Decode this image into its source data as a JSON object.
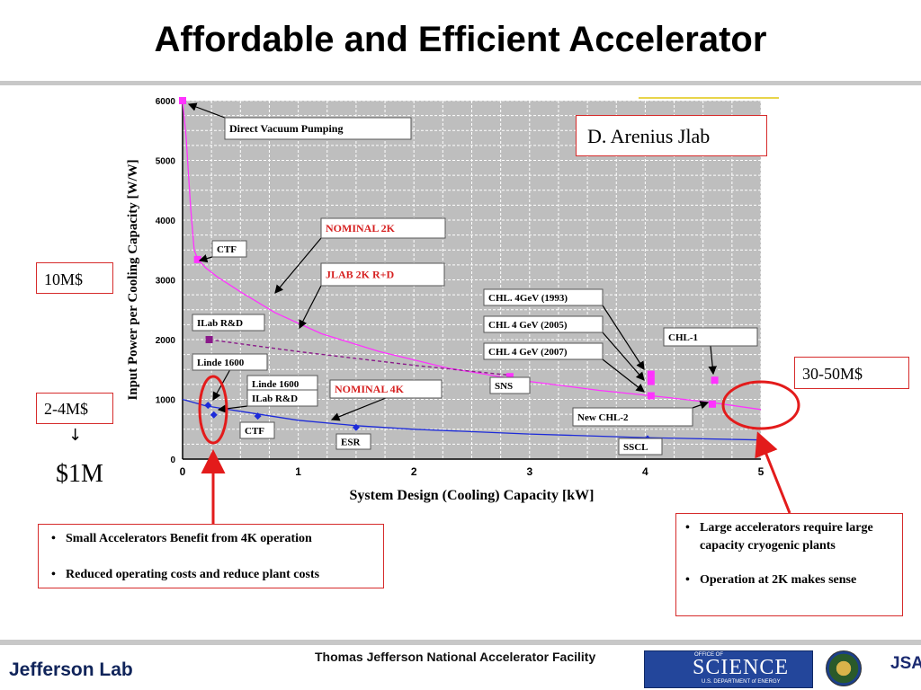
{
  "slide": {
    "title": "Affordable and Efficient Accelerator",
    "author_note": "D. Arenius Jlab"
  },
  "cost_labels": {
    "small": "10M$",
    "medium": "2-4M$",
    "large": "30-50M$",
    "arrow": "↓",
    "one_million": "$1M"
  },
  "bullets_small": [
    "Small Accelerators Benefit from 4K operation",
    "Reduced operating costs and reduce plant costs"
  ],
  "bullets_large": [
    "Large accelerators require large capacity cryogenic plants",
    "Operation at 2K makes sense"
  ],
  "footer": {
    "institution": "Thomas Jefferson National Accelerator Facility",
    "lab_logo_text": "Jefferson Lab",
    "science_logo_text": "SCIENCE",
    "science_logo_office": "OFFICE OF",
    "science_logo_dept": "U.S. DEPARTMENT of ENERGY",
    "jsa_logo_text": "JSA"
  },
  "colors": {
    "magenta": "#ff33ff",
    "blue": "#1d2bd9",
    "purple": "#8a1a8a",
    "highlight_red": "#e31b1b",
    "plot_bg": "#bebebe"
  },
  "chart_data": {
    "type": "line",
    "xlabel": "System Design (Cooling) Capacity [kW]",
    "ylabel": "Input Power per Cooling Capacity [W/W]",
    "xlim": [
      0,
      5
    ],
    "ylim": [
      0,
      6000
    ],
    "x_ticks": [
      "0",
      "1",
      "2",
      "3",
      "4",
      "5"
    ],
    "y_ticks": [
      "0",
      "1000",
      "2000",
      "3000",
      "4000",
      "5000",
      "6000"
    ],
    "grid": true,
    "curves": [
      {
        "name": "NOMINAL 2K",
        "color": "magenta",
        "x": [
          0.0,
          0.03,
          0.07,
          0.1,
          0.13,
          0.2,
          0.3,
          0.5,
          0.8,
          1.2,
          1.7,
          2.3,
          3.0,
          3.6,
          4.2,
          4.6,
          5.0
        ],
        "y": [
          6000,
          5400,
          4200,
          3500,
          3350,
          3200,
          3050,
          2800,
          2450,
          2100,
          1800,
          1520,
          1300,
          1150,
          1030,
          940,
          830
        ]
      },
      {
        "name": "NOMINAL 4K",
        "color": "blue",
        "x": [
          0.0,
          0.2,
          0.5,
          1.0,
          1.5,
          2.0,
          3.0,
          4.0,
          5.0
        ],
        "y": [
          1000,
          890,
          800,
          650,
          560,
          500,
          420,
          360,
          320
        ]
      },
      {
        "name": "JLAB 2K R+D",
        "color": "purple",
        "dashed": true,
        "x": [
          0.23,
          1.0,
          2.0,
          2.85
        ],
        "y": [
          2000,
          1800,
          1570,
          1400
        ]
      }
    ],
    "points": [
      {
        "label": "Direct Vacuum Pumping",
        "x": 0.0,
        "y": 6000,
        "color": "magenta"
      },
      {
        "label": "CTF",
        "x": 0.13,
        "y": 3340,
        "color": "magenta"
      },
      {
        "label": "ILab R&D",
        "x": 0.23,
        "y": 2000,
        "color": "purple"
      },
      {
        "label": "Linde 1600",
        "x": 0.22,
        "y": 900,
        "color": "blue"
      },
      {
        "label": "Linde 1600 ILab R&D",
        "x": 0.27,
        "y": 740,
        "color": "blue"
      },
      {
        "label": "CTF",
        "x": 0.65,
        "y": 720,
        "color": "blue"
      },
      {
        "label": "ESR",
        "x": 1.5,
        "y": 530,
        "color": "blue"
      },
      {
        "label": "SNS",
        "x": 2.83,
        "y": 1380,
        "color": "magenta"
      },
      {
        "label": "CHL. 4GeV (1993)",
        "x": 4.05,
        "y": 1420,
        "color": "magenta"
      },
      {
        "label": "CHL 4 GeV (2005)",
        "x": 4.05,
        "y": 1300,
        "color": "magenta"
      },
      {
        "label": "CHL 4 GeV (2007)",
        "x": 4.05,
        "y": 1060,
        "color": "magenta"
      },
      {
        "label": "SSCL",
        "x": 4.02,
        "y": 340,
        "color": "blue"
      },
      {
        "label": "CHL-1",
        "x": 4.6,
        "y": 1320,
        "color": "magenta"
      },
      {
        "label": "New CHL-2",
        "x": 4.58,
        "y": 920,
        "color": "magenta"
      }
    ],
    "callouts": [
      {
        "label": "Direct Vacuum Pumping",
        "bold": false
      },
      {
        "label": "CTF",
        "bold": false
      },
      {
        "label": "NOMINAL 2K",
        "bold": true,
        "color": "#d62020"
      },
      {
        "label": "JLAB 2K R+D",
        "bold": true,
        "color": "#d62020"
      },
      {
        "label": "ILab R&D",
        "bold": false
      },
      {
        "label": "Linde 1600",
        "bold": false
      },
      {
        "label": "Linde 1600",
        "bold": false
      },
      {
        "label": "ILab R&D",
        "bold": false
      },
      {
        "label": "NOMINAL 4K",
        "bold": true,
        "color": "#d62020"
      },
      {
        "label": "CTF",
        "bold": false
      },
      {
        "label": "ESR",
        "bold": false
      },
      {
        "label": "SNS",
        "bold": false
      },
      {
        "label": "CHL. 4GeV (1993)",
        "bold": false
      },
      {
        "label": "CHL 4 GeV (2005)",
        "bold": false
      },
      {
        "label": "CHL 4 GeV (2007)",
        "bold": false
      },
      {
        "label": "CHL-1",
        "bold": false
      },
      {
        "label": "New CHL-2",
        "bold": false
      },
      {
        "label": "SSCL",
        "bold": false
      }
    ]
  }
}
